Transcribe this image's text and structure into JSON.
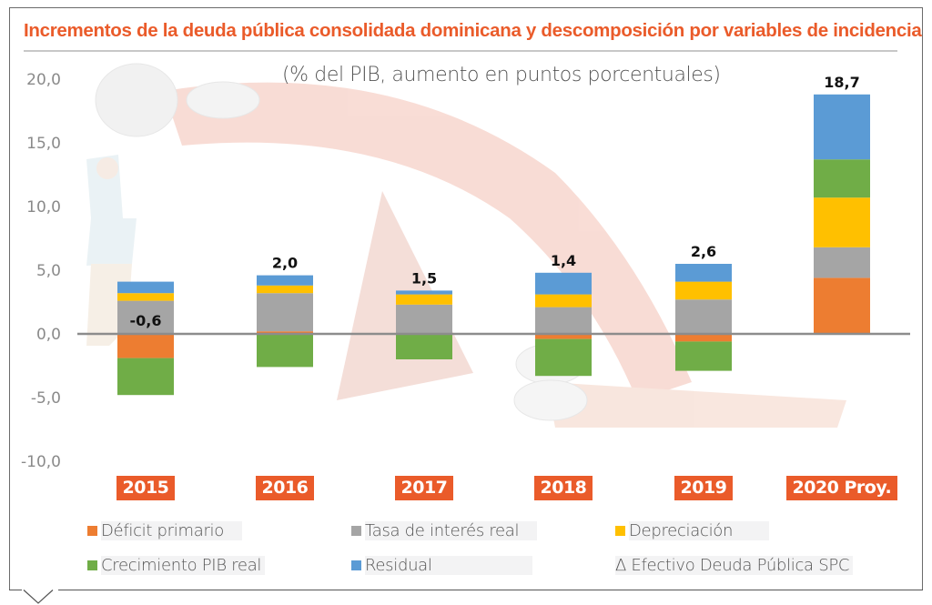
{
  "chart_data": {
    "type": "bar",
    "stacked": true,
    "title": "Incrementos de la deuda pública consolidada dominicana y descomposición por variables de incidencia",
    "subtitle": "(% del PIB, aumento en puntos porcentuales)",
    "xlabel": "",
    "ylabel": "",
    "ylim": [
      -10,
      20
    ],
    "yticks": [
      20,
      15,
      10,
      5,
      0,
      -5,
      -10
    ],
    "ytick_labels": [
      "20,0",
      "15,0",
      "10,0",
      "5,0",
      "0,0",
      "-5,0",
      "-10,0"
    ],
    "grid": false,
    "legend_position": "bottom",
    "categories": [
      "2015",
      "2016",
      "2017",
      "2018",
      "2019",
      "2020 Proy."
    ],
    "series": [
      {
        "name": "Déficit primario",
        "color": "#ed7d31",
        "values": [
          -1.9,
          0.2,
          0.0,
          -0.4,
          -0.6,
          4.4
        ]
      },
      {
        "name": "Tasa de interés real",
        "color": "#a5a5a5",
        "values": [
          2.6,
          3.0,
          2.3,
          2.1,
          2.7,
          2.4
        ]
      },
      {
        "name": "Depreciación",
        "color": "#ffc000",
        "values": [
          0.6,
          0.6,
          0.8,
          1.0,
          1.4,
          3.9
        ]
      },
      {
        "name": "Crecimiento PIB real",
        "color": "#70ad47",
        "values": [
          -2.9,
          -2.6,
          -2.0,
          -2.9,
          -2.3,
          3.0
        ]
      },
      {
        "name": "Residual",
        "color": "#5b9bd5",
        "values": [
          0.9,
          0.8,
          0.3,
          1.7,
          1.4,
          5.1
        ]
      }
    ],
    "totals": {
      "name": "Δ Efectivo Deuda Pública SPC",
      "values": [
        -0.6,
        2.0,
        1.5,
        1.4,
        2.6,
        18.7
      ],
      "labels": [
        "-0,6",
        "2,0",
        "1,5",
        "1,4",
        "2,6",
        "18,7"
      ]
    }
  },
  "legend": {
    "items": [
      {
        "label": "Déficit primario",
        "color": "#ed7d31",
        "marker": "square"
      },
      {
        "label": "Tasa de interés real",
        "color": "#a5a5a5",
        "marker": "square"
      },
      {
        "label": "Depreciación",
        "color": "#ffc000",
        "marker": "square"
      },
      {
        "label": "Crecimiento PIB real",
        "color": "#70ad47",
        "marker": "square"
      },
      {
        "label": "Residual",
        "color": "#5b9bd5",
        "marker": "square"
      },
      {
        "label": "Δ Efectivo Deuda Pública SPC",
        "color": "",
        "marker": "none"
      }
    ]
  },
  "colors": {
    "accent": "#ea5b2a",
    "axis": "#8c8c8c"
  }
}
